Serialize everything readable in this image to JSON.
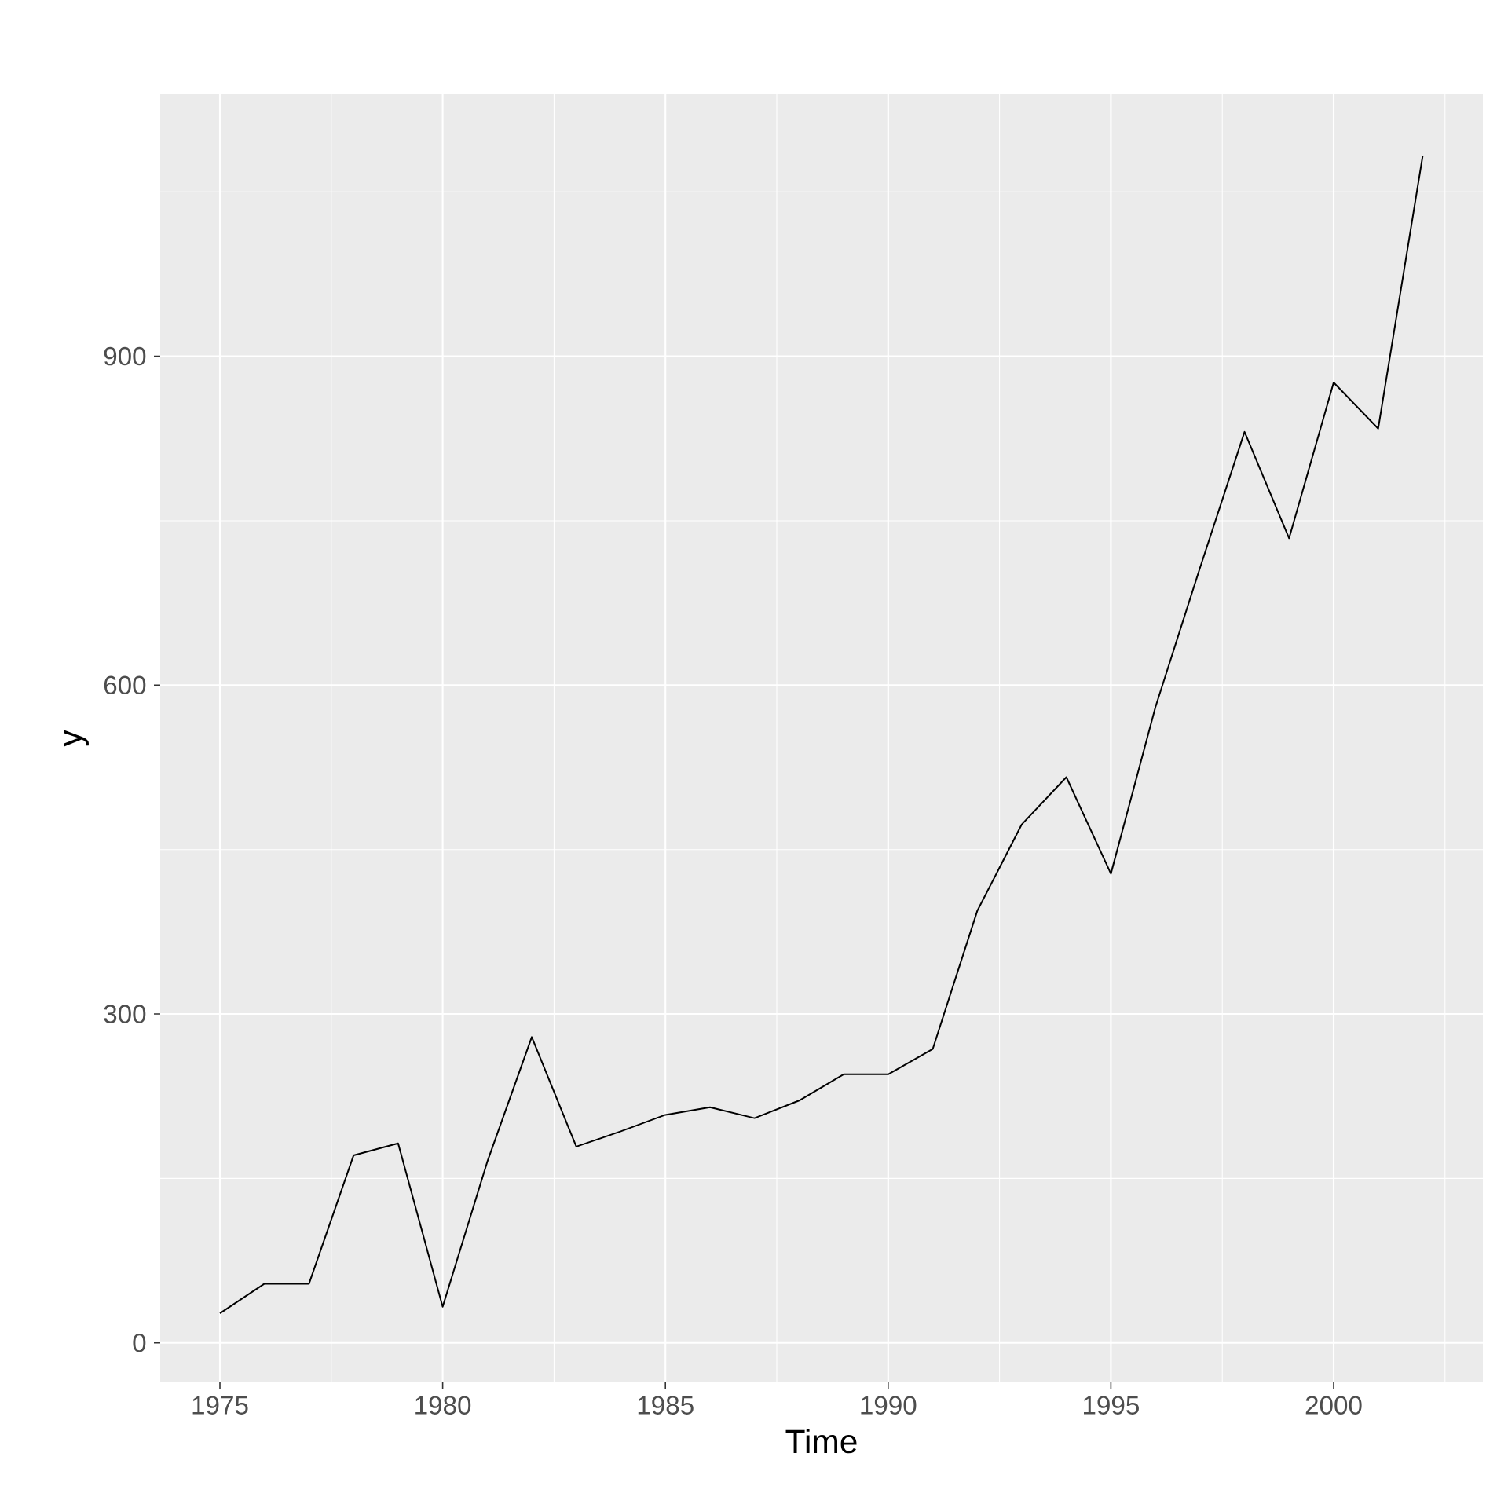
{
  "chart_data": {
    "type": "line",
    "xlabel": "Time",
    "ylabel": "y",
    "x": [
      1975,
      1976,
      1977,
      1978,
      1979,
      1980,
      1981,
      1982,
      1983,
      1984,
      1985,
      1986,
      1987,
      1988,
      1989,
      1990,
      1991,
      1992,
      1993,
      1994,
      1995,
      1996,
      1997,
      1998,
      1999,
      2000,
      2001,
      2002
    ],
    "series": [
      {
        "color": "#000000",
        "values": [
          27,
          54,
          54,
          171,
          182,
          33,
          165,
          279,
          179,
          193,
          208,
          215,
          205,
          221,
          245,
          245,
          268,
          394,
          473,
          516,
          428,
          580,
          707,
          831,
          734,
          876,
          834,
          1083
        ]
      }
    ],
    "xlim": [
      1973.66,
      2003.35
    ],
    "ylim": [
      -36,
      1139
    ],
    "xticks": [
      1975,
      1980,
      1985,
      1990,
      1995,
      2000
    ],
    "yticks": [
      0,
      300,
      600,
      900
    ],
    "grid": true,
    "marker": "none",
    "line_style": "solid"
  }
}
